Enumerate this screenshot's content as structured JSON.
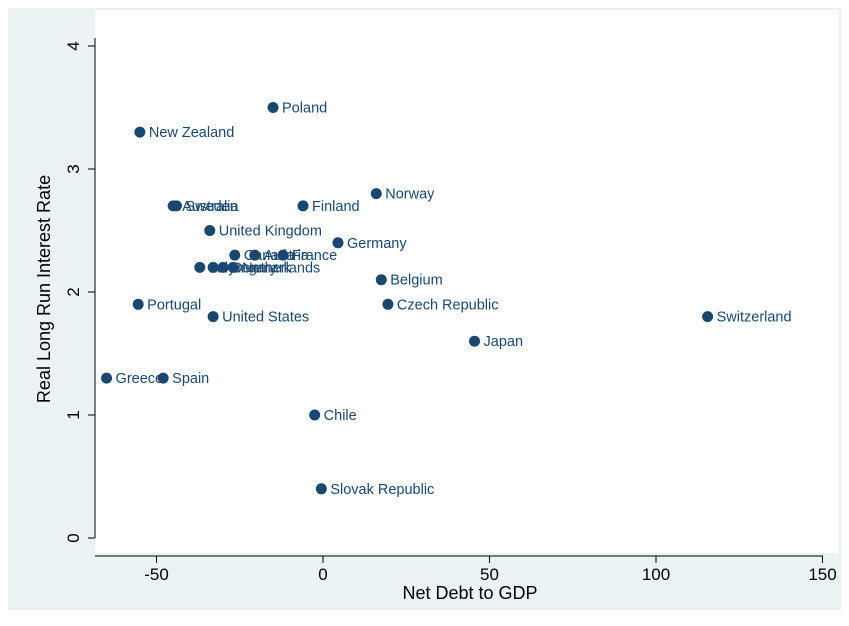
{
  "chart_data": {
    "type": "scatter",
    "title": "",
    "xlabel": "Net Debt to GDP",
    "ylabel": "Real Long Run Interest Rate",
    "xlim": [
      -68,
      151
    ],
    "ylim": [
      -0.05,
      4.15
    ],
    "xticks": [
      -50,
      0,
      50,
      100,
      150
    ],
    "xtick_labels": [
      "-50",
      "0",
      "50",
      "100",
      "150"
    ],
    "yticks": [
      0,
      1,
      2,
      3,
      4
    ],
    "ytick_labels": [
      "0",
      "1",
      "2",
      "3",
      "4"
    ],
    "grid": false,
    "legend": "none",
    "marker_color": "#1a476f",
    "points": [
      {
        "label": "Poland",
        "x": -15,
        "y": 3.5
      },
      {
        "label": "New Zealand",
        "x": -55,
        "y": 3.3
      },
      {
        "label": "Norway",
        "x": 16,
        "y": 2.8
      },
      {
        "label": "Australia",
        "x": -45,
        "y": 2.7
      },
      {
        "label": "Sweden",
        "x": -44,
        "y": 2.7
      },
      {
        "label": "Finland",
        "x": -6,
        "y": 2.7
      },
      {
        "label": "United Kingdom",
        "x": -34,
        "y": 2.5
      },
      {
        "label": "Germany",
        "x": 4.5,
        "y": 2.4
      },
      {
        "label": "Canada",
        "x": -26.5,
        "y": 2.3
      },
      {
        "label": "Austria",
        "x": -20.5,
        "y": 2.3
      },
      {
        "label": "France",
        "x": -12,
        "y": 2.3
      },
      {
        "label": "Italy",
        "x": -37,
        "y": 2.2
      },
      {
        "label": "Hungary",
        "x": -33,
        "y": 2.2
      },
      {
        "label": "Denmark",
        "x": -30,
        "y": 2.2
      },
      {
        "label": "Netherlands",
        "x": -27,
        "y": 2.2
      },
      {
        "label": "Belgium",
        "x": 17.5,
        "y": 2.1
      },
      {
        "label": "Portugal",
        "x": -55.5,
        "y": 1.9
      },
      {
        "label": "Czech Republic",
        "x": 19.5,
        "y": 1.9
      },
      {
        "label": "United States",
        "x": -33,
        "y": 1.8
      },
      {
        "label": "Switzerland",
        "x": 115.5,
        "y": 1.8
      },
      {
        "label": "Japan",
        "x": 45.5,
        "y": 1.6
      },
      {
        "label": "Greece",
        "x": -65,
        "y": 1.3
      },
      {
        "label": "Spain",
        "x": -48,
        "y": 1.3
      },
      {
        "label": "Chile",
        "x": -2.5,
        "y": 1.0
      },
      {
        "label": "Slovak Republic",
        "x": -0.5,
        "y": 0.4
      }
    ]
  }
}
